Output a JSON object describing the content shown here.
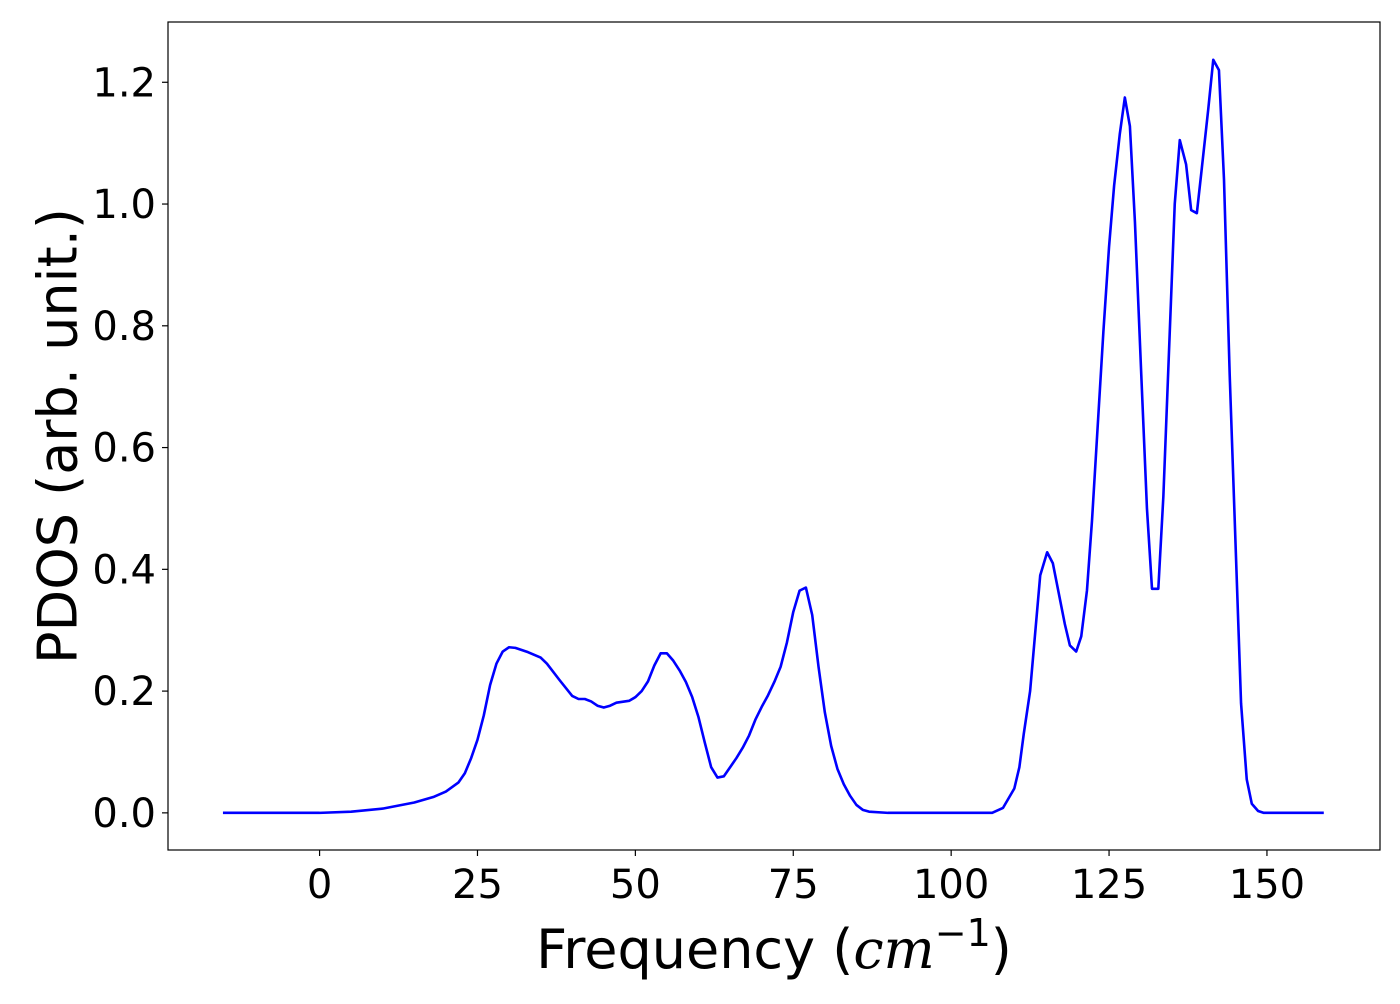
{
  "chart_data": {
    "type": "line",
    "xlabel": [
      "Frequency (",
      "cm",
      "−1",
      ")"
    ],
    "ylabel": "PDOS (arb. unit.)",
    "xlim": [
      -24,
      167.9
    ],
    "ylim": [
      -0.061,
      1.299
    ],
    "xticks": [
      0,
      25,
      50,
      75,
      100,
      125,
      150
    ],
    "yticks": [
      {
        "value": 0,
        "label": "0.0"
      },
      0.2,
      0.4,
      0.6,
      0.8,
      {
        "value": 1,
        "label": "1.0"
      },
      1.2
    ],
    "grid": false,
    "x": [
      -15.3,
      0,
      5,
      10,
      15,
      18,
      20,
      22,
      23,
      24,
      25,
      26,
      27,
      28,
      29,
      30,
      31,
      33,
      35,
      36,
      38,
      40,
      41,
      42,
      43,
      44,
      45,
      46,
      47,
      49,
      50,
      51,
      52,
      53,
      54,
      55,
      56,
      57,
      58,
      59,
      60,
      61,
      62,
      63,
      64,
      65,
      66,
      67,
      68,
      69,
      70,
      71,
      72,
      73,
      74,
      75,
      76,
      77,
      78,
      79,
      80,
      81,
      82,
      83,
      84,
      85,
      86,
      87,
      90,
      106.5,
      108.2,
      110,
      110.8,
      111.5,
      112.5,
      114.1,
      115.2,
      116.1,
      118,
      118.8,
      119.8,
      120.6,
      121.5,
      122.3,
      124.1,
      125,
      125.8,
      126.7,
      127.5,
      128.3,
      129.1,
      130.1,
      131,
      131.8,
      132.8,
      133.6,
      135.4,
      136.2,
      137.2,
      138,
      138.9,
      139.7,
      140.7,
      141.5,
      142.4,
      143.2,
      144.1,
      145.1,
      145.9,
      146.8,
      147.6,
      148.6,
      149.5,
      159
    ],
    "series": [
      {
        "color": "#0000ff",
        "values": [
          0,
          0,
          0.002,
          0.007,
          0.017,
          0.026,
          0.035,
          0.05,
          0.065,
          0.09,
          0.12,
          0.16,
          0.21,
          0.245,
          0.265,
          0.272,
          0.271,
          0.264,
          0.255,
          0.245,
          0.218,
          0.192,
          0.187,
          0.187,
          0.183,
          0.176,
          0.173,
          0.176,
          0.181,
          0.184,
          0.19,
          0.2,
          0.216,
          0.242,
          0.262,
          0.262,
          0.25,
          0.234,
          0.215,
          0.19,
          0.157,
          0.115,
          0.075,
          0.058,
          0.06,
          0.075,
          0.09,
          0.107,
          0.127,
          0.153,
          0.174,
          0.193,
          0.215,
          0.24,
          0.28,
          0.33,
          0.365,
          0.37,
          0.325,
          0.24,
          0.165,
          0.11,
          0.072,
          0.047,
          0.028,
          0.013,
          0.005,
          0.002,
          0,
          0,
          0.008,
          0.04,
          0.075,
          0.13,
          0.2,
          0.39,
          0.428,
          0.41,
          0.31,
          0.275,
          0.265,
          0.29,
          0.365,
          0.48,
          0.79,
          0.93,
          1.03,
          1.115,
          1.175,
          1.128,
          0.97,
          0.72,
          0.5,
          0.368,
          0.368,
          0.52,
          1.0,
          1.105,
          1.065,
          0.99,
          0.985,
          1.06,
          1.155,
          1.237,
          1.22,
          1.04,
          0.72,
          0.42,
          0.18,
          0.055,
          0.015,
          0.003,
          0,
          0
        ]
      }
    ]
  }
}
